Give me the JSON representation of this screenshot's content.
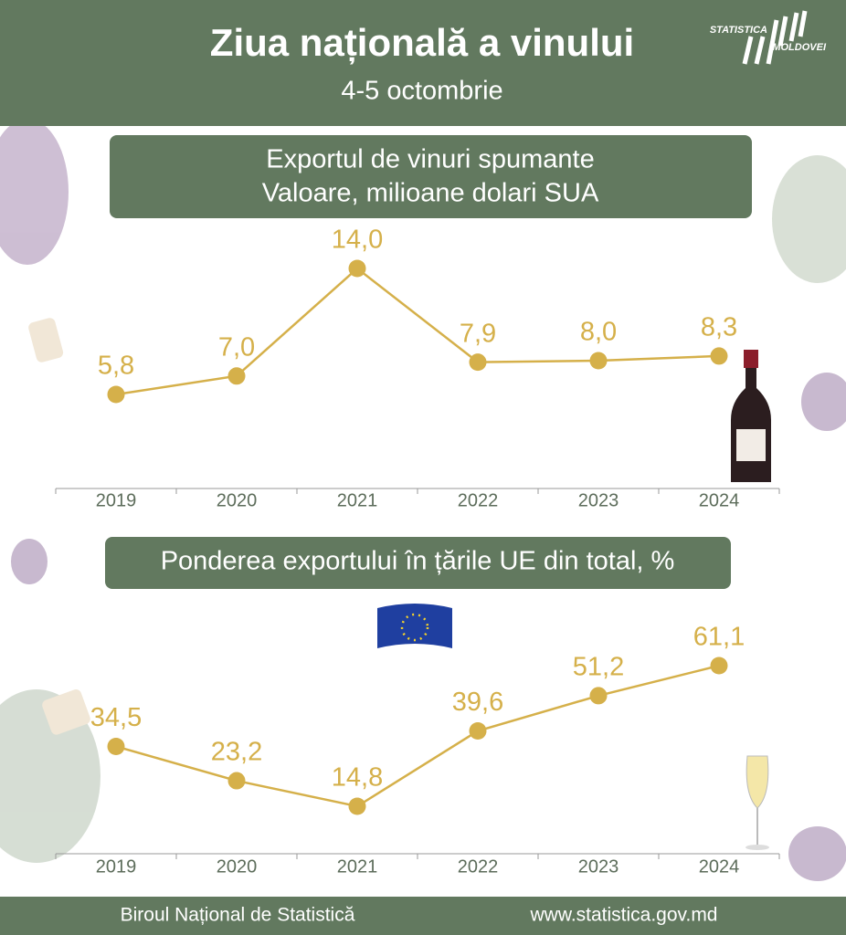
{
  "header": {
    "title": "Ziua națională a vinului",
    "subtitle": "4-5 octombrie",
    "logo_top": "STATISTICA",
    "logo_bottom": "MOLDOVEI"
  },
  "chart_data": [
    {
      "type": "line",
      "title": "Exportul de vinuri spumante",
      "subtitle": "Valoare, milioane dolari SUA",
      "categories": [
        "2019",
        "2020",
        "2021",
        "2022",
        "2023",
        "2024"
      ],
      "values": [
        5.8,
        7.0,
        14.0,
        7.9,
        8.0,
        8.3
      ],
      "value_labels": [
        "5,8",
        "7,0",
        "14,0",
        "7,9",
        "8,0",
        "8,3"
      ],
      "color": "#d5b04a"
    },
    {
      "type": "line",
      "title": "Ponderea exportului în țările UE din total, %",
      "categories": [
        "2019",
        "2020",
        "2021",
        "2022",
        "2023",
        "2024"
      ],
      "values": [
        34.5,
        23.2,
        14.8,
        39.6,
        51.2,
        61.1
      ],
      "value_labels": [
        "34,5",
        "23,2",
        "14,8",
        "39,6",
        "51,2",
        "61,1"
      ],
      "color": "#d5b04a"
    }
  ],
  "footer": {
    "left": "Biroul Național de Statistică",
    "right": "www.statistica.gov.md"
  }
}
